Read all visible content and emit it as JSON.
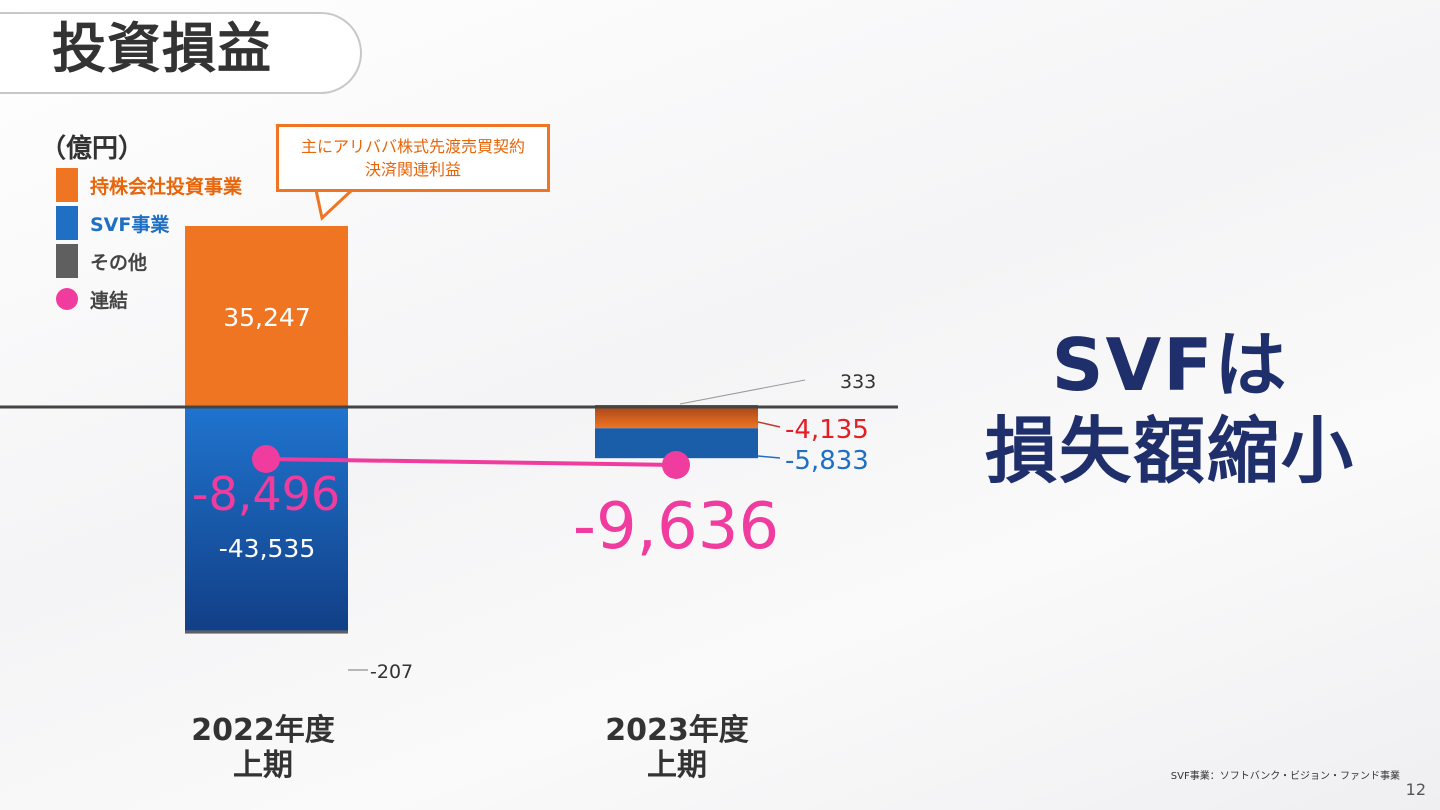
{
  "slide": {
    "title": "投資損益",
    "headline_line1": "SVFは",
    "headline_line2": "損失額縮小",
    "footnote": "SVF事業：ソフトバンク・ビジョン・ファンド事業",
    "page_number": "12"
  },
  "callout": {
    "line1": "主にアリババ株式先渡売買契約",
    "line2": "決済関連利益"
  },
  "colors": {
    "holding": "#f07522",
    "svf": "#1f6fc4",
    "other": "#5f5f5f",
    "consolidated": "#f03c9e",
    "headline": "#1e2f6b",
    "negative_red": "#e31e24",
    "svf_label": "#1f6fc4"
  },
  "chart_data": {
    "type": "bar",
    "stacked": true,
    "unit_label": "（億円）",
    "categories": [
      "2022年度上期",
      "2023年度上期"
    ],
    "category_labels": [
      {
        "line1": "2022年度",
        "line2": "上期"
      },
      {
        "line1": "2023年度",
        "line2": "上期"
      }
    ],
    "series": [
      {
        "name": "持株会社投資事業",
        "values": [
          35247,
          -4135
        ],
        "labels": [
          "35,247",
          "-4,135"
        ]
      },
      {
        "name": "SVF事業",
        "values": [
          -43535,
          -5833
        ],
        "labels": [
          "-43,535",
          "-5,833"
        ]
      },
      {
        "name": "その他",
        "values": [
          -207,
          333
        ],
        "labels": [
          "-207",
          "333"
        ]
      }
    ],
    "consolidated": {
      "name": "連結",
      "values": [
        -8496,
        -9636
      ],
      "labels": [
        "-8,496",
        "-9,636"
      ]
    },
    "legend": [
      "持株会社投資事業",
      "SVF事業",
      "その他",
      "連結"
    ],
    "legend_position": "top-left",
    "ylim": [
      -45000,
      36000
    ],
    "grid": false
  }
}
